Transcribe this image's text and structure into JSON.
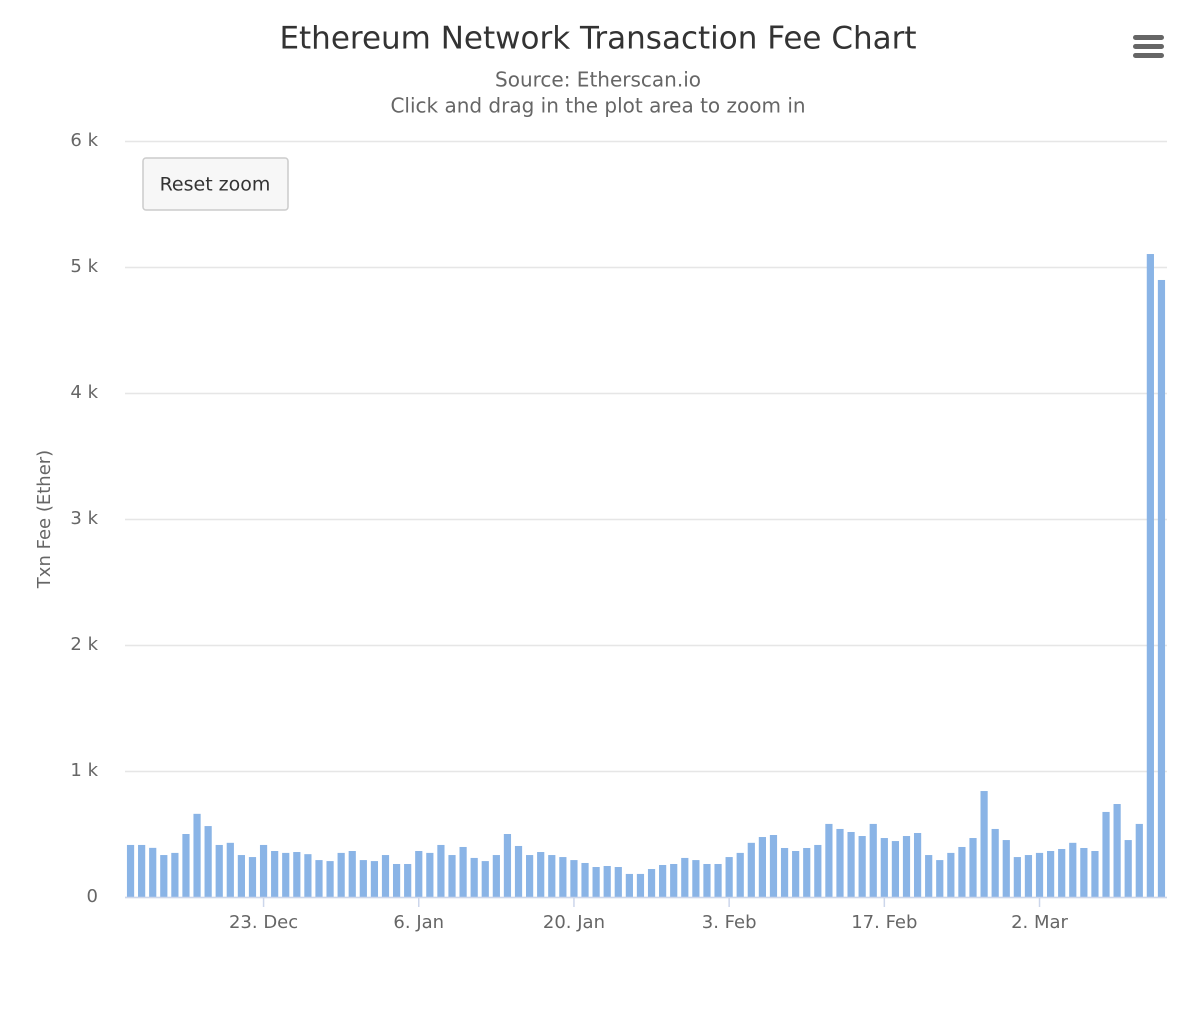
{
  "chart_data": {
    "type": "bar",
    "title": "Ethereum Network Transaction Fee Chart",
    "subtitle": "Source: Etherscan.io",
    "subtitle2": "Click and drag in the plot area to zoom in",
    "y_label": "Txn Fee (Ether)",
    "color": "#8ab4e6",
    "grid": true,
    "ylim": [
      0,
      6000
    ],
    "yticks": [
      0,
      {
        "value": 1000,
        "label": "1 k"
      },
      {
        "value": 2000,
        "label": "2 k"
      },
      {
        "value": 3000,
        "label": "3 k"
      },
      {
        "value": 4000,
        "label": "4 k"
      },
      {
        "value": 5000,
        "label": "5 k"
      },
      {
        "value": 6000,
        "label": "6 k"
      }
    ],
    "categories": [
      null,
      null,
      null,
      null,
      null,
      null,
      null,
      null,
      null,
      null,
      null,
      null,
      "23. Dec",
      null,
      null,
      null,
      null,
      null,
      null,
      null,
      null,
      null,
      null,
      null,
      null,
      null,
      "6. Jan",
      null,
      null,
      null,
      null,
      null,
      null,
      null,
      null,
      null,
      null,
      null,
      null,
      null,
      "20. Jan",
      null,
      null,
      null,
      null,
      null,
      null,
      null,
      null,
      null,
      null,
      null,
      null,
      null,
      "3. Feb",
      null,
      null,
      null,
      null,
      null,
      null,
      null,
      null,
      null,
      null,
      null,
      null,
      null,
      "17. Feb",
      null,
      null,
      null,
      null,
      null,
      null,
      null,
      null,
      null,
      null,
      null,
      null,
      null,
      "2. Mar",
      null,
      null,
      null,
      null,
      null,
      null,
      null,
      null,
      null,
      null,
      null
    ],
    "values": [
      413,
      413,
      390,
      333,
      350,
      500,
      660,
      563,
      413,
      430,
      333,
      317,
      413,
      365,
      350,
      357,
      340,
      293,
      285,
      350,
      365,
      293,
      285,
      333,
      262,
      262,
      365,
      350,
      413,
      333,
      397,
      310,
      285,
      333,
      500,
      405,
      333,
      357,
      333,
      317,
      293,
      270,
      238,
      246,
      238,
      183,
      183,
      222,
      254,
      262,
      310,
      293,
      262,
      262,
      317,
      350,
      430,
      476,
      492,
      389,
      365,
      389,
      413,
      580,
      540,
      516,
      484,
      580,
      468,
      444,
      484,
      508,
      333,
      293,
      350,
      397,
      468,
      841,
      540,
      452,
      317,
      333,
      350,
      365,
      381,
      430,
      389,
      365,
      675,
      738,
      452,
      580,
      5103,
      4897
    ]
  },
  "ui": {
    "reset_button": "Reset zoom"
  }
}
